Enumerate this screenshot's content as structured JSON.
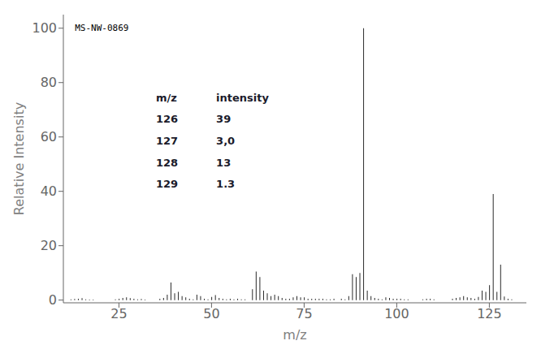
{
  "chart_data": {
    "type": "stem",
    "title": "MS-NW-0869",
    "xlabel": "m/z",
    "ylabel": "Relative Intensity",
    "x": [
      12,
      13,
      14,
      15,
      16,
      17,
      18,
      24,
      25,
      26,
      27,
      28,
      29,
      30,
      31,
      32,
      36,
      37,
      38,
      39,
      40,
      41,
      42,
      43,
      44,
      45,
      46,
      47,
      48,
      49,
      50,
      51,
      52,
      53,
      54,
      55,
      56,
      57,
      58,
      59,
      61,
      62,
      63,
      64,
      65,
      66,
      67,
      68,
      69,
      70,
      71,
      72,
      73,
      74,
      75,
      76,
      77,
      78,
      79,
      80,
      81,
      82,
      83,
      85,
      86,
      87,
      88,
      89,
      90,
      91,
      92,
      93,
      94,
      95,
      96,
      97,
      98,
      99,
      100,
      101,
      102,
      103,
      107,
      108,
      109,
      110,
      115,
      116,
      117,
      118,
      119,
      120,
      121,
      122,
      123,
      124,
      125,
      126,
      127,
      128,
      129,
      130,
      131
    ],
    "values": [
      0.3,
      0.4,
      0.5,
      0.7,
      0.3,
      0.2,
      0.2,
      0.3,
      0.5,
      0.8,
      1.0,
      0.7,
      0.5,
      0.3,
      0.4,
      0.2,
      0.5,
      0.8,
      2.0,
      6.5,
      2.5,
      3.0,
      1.5,
      1.0,
      0.5,
      0.3,
      2.0,
      1.5,
      0.5,
      0.3,
      1.2,
      1.8,
      0.8,
      0.5,
      0.3,
      0.5,
      0.3,
      0.5,
      0.3,
      0.3,
      4.0,
      10.5,
      8.5,
      3.5,
      2.5,
      1.5,
      2.0,
      1.5,
      0.8,
      0.5,
      0.5,
      1.0,
      1.5,
      1.0,
      1.0,
      0.5,
      0.5,
      0.5,
      0.5,
      0.5,
      0.3,
      0.3,
      0.5,
      0.5,
      0.3,
      1.5,
      9.5,
      8.5,
      10.0,
      100.0,
      3.5,
      1.5,
      0.8,
      0.5,
      0.3,
      1.0,
      0.8,
      0.5,
      0.5,
      0.5,
      0.3,
      0.3,
      0.3,
      0.5,
      0.5,
      0.3,
      0.5,
      0.8,
      1.0,
      1.5,
      1.0,
      0.8,
      0.5,
      1.2,
      3.5,
      3.0,
      5.5,
      39.0,
      3.0,
      13.0,
      1.3,
      0.5,
      0.3
    ],
    "color": "#2a2a2a",
    "xlim": [
      10,
      135
    ],
    "ylim": [
      -1,
      105
    ],
    "xticks": [
      25,
      50,
      75,
      100,
      125
    ],
    "yticks": [
      0,
      20,
      40,
      60,
      80,
      100
    ],
    "grid": false,
    "annotations": {
      "header": [
        "m/z",
        "intensity"
      ],
      "rows": [
        [
          126,
          "39"
        ],
        [
          127,
          "3,0"
        ],
        [
          128,
          "13"
        ],
        [
          129,
          "1.3"
        ]
      ]
    }
  }
}
